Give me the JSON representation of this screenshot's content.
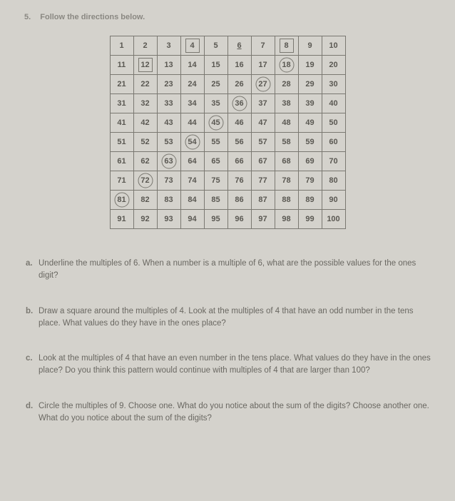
{
  "top": {
    "num": "5.",
    "text": "Follow the directions below."
  },
  "grid": {
    "cells": [
      [
        {
          "v": "1"
        },
        {
          "v": "2"
        },
        {
          "v": "3"
        },
        {
          "v": "4",
          "m": "square"
        },
        {
          "v": "5"
        },
        {
          "v": "6",
          "m": "underline"
        },
        {
          "v": "7"
        },
        {
          "v": "8",
          "m": "square"
        },
        {
          "v": "9"
        },
        {
          "v": "10"
        }
      ],
      [
        {
          "v": "11"
        },
        {
          "v": "12",
          "m": "square"
        },
        {
          "v": "13"
        },
        {
          "v": "14"
        },
        {
          "v": "15"
        },
        {
          "v": "16"
        },
        {
          "v": "17"
        },
        {
          "v": "18",
          "m": "circle"
        },
        {
          "v": "19"
        },
        {
          "v": "20"
        }
      ],
      [
        {
          "v": "21"
        },
        {
          "v": "22"
        },
        {
          "v": "23"
        },
        {
          "v": "24"
        },
        {
          "v": "25"
        },
        {
          "v": "26"
        },
        {
          "v": "27",
          "m": "circle"
        },
        {
          "v": "28"
        },
        {
          "v": "29"
        },
        {
          "v": "30"
        }
      ],
      [
        {
          "v": "31"
        },
        {
          "v": "32"
        },
        {
          "v": "33"
        },
        {
          "v": "34"
        },
        {
          "v": "35"
        },
        {
          "v": "36",
          "m": "circle"
        },
        {
          "v": "37"
        },
        {
          "v": "38"
        },
        {
          "v": "39"
        },
        {
          "v": "40"
        }
      ],
      [
        {
          "v": "41"
        },
        {
          "v": "42"
        },
        {
          "v": "43"
        },
        {
          "v": "44"
        },
        {
          "v": "45",
          "m": "circle"
        },
        {
          "v": "46"
        },
        {
          "v": "47"
        },
        {
          "v": "48"
        },
        {
          "v": "49"
        },
        {
          "v": "50"
        }
      ],
      [
        {
          "v": "51"
        },
        {
          "v": "52"
        },
        {
          "v": "53"
        },
        {
          "v": "54",
          "m": "circle"
        },
        {
          "v": "55"
        },
        {
          "v": "56"
        },
        {
          "v": "57"
        },
        {
          "v": "58"
        },
        {
          "v": "59"
        },
        {
          "v": "60"
        }
      ],
      [
        {
          "v": "61"
        },
        {
          "v": "62"
        },
        {
          "v": "63",
          "m": "circle"
        },
        {
          "v": "64"
        },
        {
          "v": "65"
        },
        {
          "v": "66"
        },
        {
          "v": "67"
        },
        {
          "v": "68"
        },
        {
          "v": "69"
        },
        {
          "v": "70"
        }
      ],
      [
        {
          "v": "71"
        },
        {
          "v": "72",
          "m": "circle"
        },
        {
          "v": "73"
        },
        {
          "v": "74"
        },
        {
          "v": "75"
        },
        {
          "v": "76"
        },
        {
          "v": "77"
        },
        {
          "v": "78"
        },
        {
          "v": "79"
        },
        {
          "v": "80"
        }
      ],
      [
        {
          "v": "81",
          "m": "circle"
        },
        {
          "v": "82"
        },
        {
          "v": "83"
        },
        {
          "v": "84"
        },
        {
          "v": "85"
        },
        {
          "v": "86"
        },
        {
          "v": "87"
        },
        {
          "v": "88"
        },
        {
          "v": "89"
        },
        {
          "v": "90"
        }
      ],
      [
        {
          "v": "91"
        },
        {
          "v": "92"
        },
        {
          "v": "93"
        },
        {
          "v": "94"
        },
        {
          "v": "95"
        },
        {
          "v": "96"
        },
        {
          "v": "97"
        },
        {
          "v": "98"
        },
        {
          "v": "99"
        },
        {
          "v": "100"
        }
      ]
    ]
  },
  "questions": [
    {
      "letter": "a.",
      "text": "Underline the multiples of 6. When a number is a multiple of 6, what are the possible values for the ones digit?"
    },
    {
      "letter": "b.",
      "text": "Draw a square around the multiples of 4. Look at the multiples of 4 that have an odd number in the tens place. What values do they have in the ones place?"
    },
    {
      "letter": "c.",
      "text": "Look at the multiples of 4 that have an even number in the tens place. What values do they have in the ones place? Do you think this pattern would continue with multiples of 4 that are larger than 100?"
    },
    {
      "letter": "d.",
      "text": "Circle the multiples of 9. Choose one. What do you notice about the sum of the digits? Choose another one. What do you notice about the sum of the digits?"
    }
  ]
}
